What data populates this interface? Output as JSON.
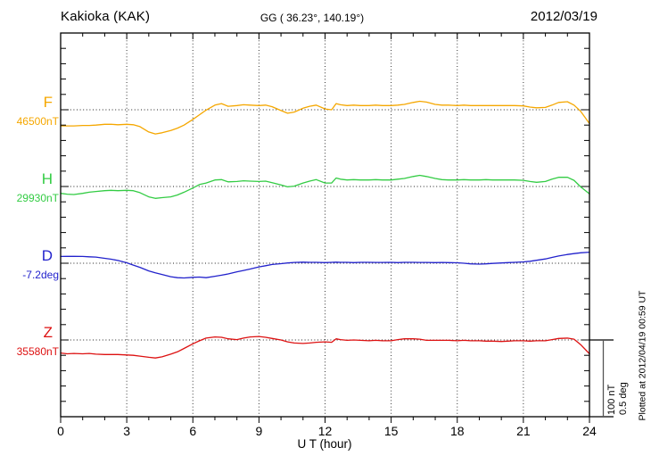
{
  "header": {
    "station": "Kakioka (KAK)",
    "coordinates": "GG ( 36.23°, 140.19°)",
    "date": "2012/03/19"
  },
  "x_axis": {
    "label": "U T (hour)",
    "tick_labels": [
      "0",
      "3",
      "6",
      "9",
      "12",
      "15",
      "18",
      "21",
      "24"
    ],
    "min": 0,
    "max": 24,
    "minor_step_hours": 1,
    "major_step_hours": 3
  },
  "scale_bar": {
    "amplitude_label": "100 nT",
    "angle_label": "0.5 deg"
  },
  "plot_note": "Plotted at 2012/04/19 00:59 UT",
  "chart_data": {
    "type": "line",
    "title": "Kakioka (KAK) magnetogram 2012/03/19",
    "x_unit": "UT hour",
    "x_range": [
      0,
      24
    ],
    "grid_hours": [
      3,
      6,
      9,
      12,
      15,
      18,
      21
    ],
    "scale": {
      "nT_per_division": 100,
      "deg_per_division": 0.5
    },
    "hours": [
      0,
      0.3,
      0.6,
      1,
      1.3,
      1.6,
      2,
      2.3,
      2.6,
      3,
      3.3,
      3.6,
      4,
      4.3,
      4.6,
      5,
      5.3,
      5.6,
      6,
      6.3,
      6.6,
      7,
      7.3,
      7.6,
      8,
      8.3,
      8.6,
      9,
      9.3,
      9.6,
      10,
      10.3,
      10.6,
      11,
      11.3,
      11.6,
      12,
      12.3,
      12.5,
      12.7,
      13,
      13.3,
      13.6,
      14,
      14.3,
      14.6,
      15,
      15.3,
      15.6,
      16,
      16.3,
      16.6,
      17,
      17.3,
      17.6,
      18,
      18.3,
      18.6,
      19,
      19.3,
      19.6,
      20,
      20.3,
      20.6,
      21,
      21.3,
      21.6,
      22,
      22.3,
      22.6,
      23,
      23.3,
      23.6,
      24
    ],
    "series": [
      {
        "id": "F",
        "label": "F",
        "baseline_label": "46500nT",
        "baseline_value": 46500,
        "unit": "nT",
        "color": "#F5A700",
        "offsets": [
          -21,
          -21,
          -21,
          -20.5,
          -20.5,
          -20,
          -19,
          -19,
          -19.5,
          -19,
          -19.5,
          -22,
          -29,
          -31.5,
          -30,
          -27,
          -24,
          -20,
          -12.5,
          -6.5,
          -0.5,
          6,
          8,
          4.5,
          5.5,
          6.5,
          6,
          5.5,
          6,
          4,
          -1,
          -4.5,
          -3,
          2,
          4.5,
          6,
          1,
          0,
          8,
          6.5,
          5.5,
          6,
          5.5,
          5.5,
          6,
          5.5,
          5.5,
          6,
          7,
          9.5,
          11,
          10,
          7,
          6,
          6,
          5.5,
          6,
          5.5,
          5.5,
          5.5,
          5.5,
          5.5,
          5.5,
          5.5,
          5,
          3.5,
          2.5,
          3,
          6,
          9.5,
          10.5,
          6,
          -2,
          -18
        ]
      },
      {
        "id": "H",
        "label": "H",
        "baseline_label": "29930nT",
        "baseline_value": 29930,
        "unit": "nT",
        "color": "#33CC44",
        "offsets": [
          -9,
          -10,
          -10.5,
          -9,
          -7.5,
          -6.5,
          -5.5,
          -5,
          -5.5,
          -5,
          -5.5,
          -8,
          -13.5,
          -15.5,
          -14.5,
          -13.5,
          -11,
          -7.5,
          -2,
          2.5,
          4.5,
          8.5,
          9,
          6,
          6.5,
          7.5,
          7,
          6.5,
          7,
          5,
          2,
          -0.5,
          0.5,
          4.5,
          7,
          9,
          4.5,
          4.5,
          11,
          9.5,
          8.5,
          9,
          8.5,
          8.5,
          9,
          8.5,
          8.5,
          9.5,
          10.5,
          13,
          14.5,
          13,
          10.5,
          9,
          8.5,
          8.5,
          9,
          8.5,
          8.5,
          9,
          8.5,
          8.5,
          8.5,
          8.5,
          8,
          6.5,
          5.5,
          6.5,
          9.5,
          12,
          12,
          8,
          -0.5,
          -9.5
        ]
      },
      {
        "id": "D",
        "label": "D",
        "baseline_label": "-7.2deg",
        "baseline_value": -7.2,
        "unit": "deg",
        "color": "#2222CC",
        "offsets": [
          0.044,
          0.045,
          0.045,
          0.044,
          0.042,
          0.04,
          0.032,
          0.026,
          0.018,
          0.003,
          -0.012,
          -0.027,
          -0.05,
          -0.062,
          -0.073,
          -0.088,
          -0.094,
          -0.096,
          -0.092,
          -0.09,
          -0.094,
          -0.085,
          -0.078,
          -0.07,
          -0.056,
          -0.047,
          -0.038,
          -0.024,
          -0.016,
          -0.008,
          -0.003,
          0.002,
          0.005,
          0.007,
          0.006,
          0.006,
          0.004,
          0.006,
          0.007,
          0.006,
          0.006,
          0.004,
          0.006,
          0.006,
          0.005,
          0.005,
          0.006,
          0.004,
          0.006,
          0.006,
          0.005,
          0.005,
          0.004,
          0.005,
          0.004,
          0.003,
          0.0,
          -0.004,
          -0.006,
          -0.004,
          -0.001,
          0.002,
          0.004,
          0.006,
          0.009,
          0.013,
          0.019,
          0.028,
          0.038,
          0.047,
          0.057,
          0.063,
          0.068,
          0.072
        ]
      },
      {
        "id": "Z",
        "label": "Z",
        "baseline_label": "35580nT",
        "baseline_value": 35580,
        "unit": "nT",
        "color": "#DD1111",
        "offsets": [
          -17,
          -18,
          -17.5,
          -18,
          -17.5,
          -18.5,
          -19,
          -19,
          -19,
          -19.5,
          -20,
          -21,
          -22.5,
          -23.5,
          -22,
          -18.5,
          -15.5,
          -11,
          -5,
          -1,
          2.5,
          4,
          3.5,
          1.5,
          0.5,
          2.5,
          4,
          4.5,
          3.5,
          2,
          0,
          -2.5,
          -4,
          -4.5,
          -4,
          -3,
          -2.5,
          -3,
          1.5,
          0.5,
          -0.5,
          0,
          -0.5,
          -1,
          -0.5,
          -1,
          -1,
          0.5,
          1.5,
          1.5,
          1,
          -0.5,
          -0.5,
          -0.5,
          -0.5,
          -1,
          -0.5,
          -1,
          -1,
          -1.5,
          -1.5,
          -2,
          -1.5,
          -1,
          -1,
          -1.5,
          -1,
          -1,
          0.5,
          2,
          2.5,
          1,
          -6,
          -18
        ]
      }
    ]
  }
}
